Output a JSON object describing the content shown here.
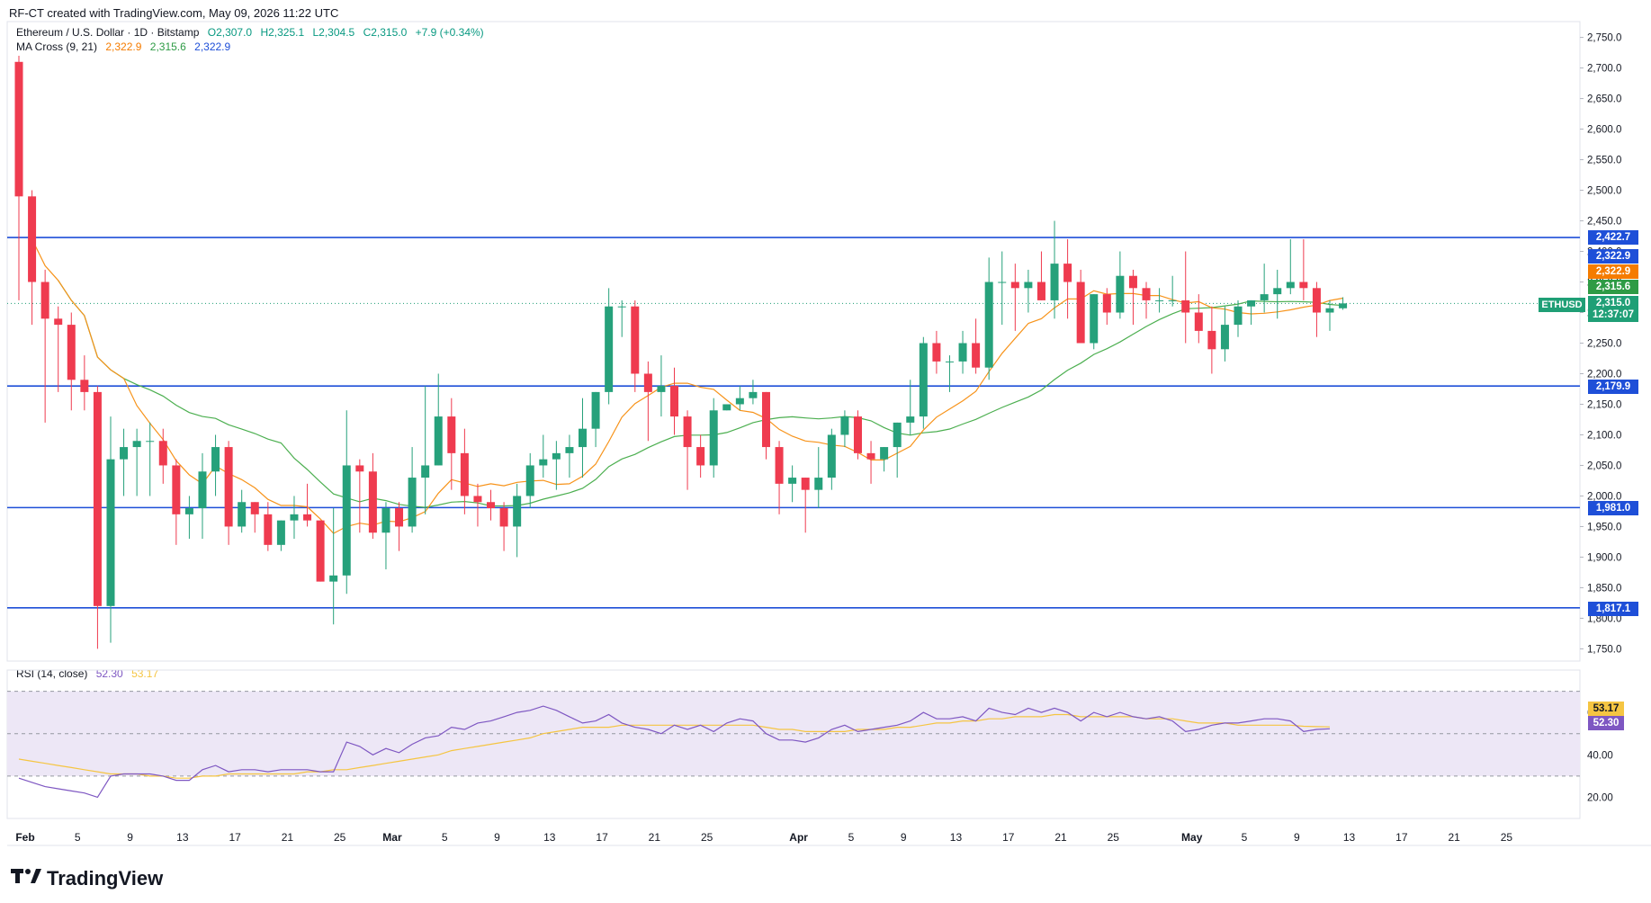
{
  "header": {
    "title": "RF-CT created with TradingView.com, May 09, 2026 11:22 UTC"
  },
  "legend": {
    "symbol": "Ethereum / U.S. Dollar · 1D · Bitstamp",
    "open": "O2,307.0",
    "high": "H2,325.1",
    "low": "L2,304.5",
    "close": "C2,315.0",
    "change": "+7.9 (+0.34%)",
    "ma_label": "MA Cross (9, 21)",
    "ma_val1": "2,322.9",
    "ma_val2": "2,315.6",
    "ma_val3": "2,322.9",
    "rsi_label": "RSI (14, close)",
    "rsi_val": "52.30",
    "rsi_ma_val": "53.17"
  },
  "colors": {
    "up": "#26a17b",
    "down": "#ef3b4f",
    "ma_fast": "#f7931a",
    "ma_slow": "#4caf50",
    "level": "#1e4fd8",
    "rsi": "#7e57c2",
    "rsi_ma": "#f5c542",
    "rsi_band": "#ede7f6"
  },
  "price_tags": [
    {
      "label": "2,422.7",
      "color": "#1e4fd8"
    },
    {
      "label": "2,322.9",
      "color": "#1e4fd8"
    },
    {
      "label": "2,322.9",
      "color": "#f57c00"
    },
    {
      "label": "2,315.6",
      "color": "#2e9b45"
    },
    {
      "label": "2,315.0",
      "color": "#1f9f76"
    },
    {
      "label": "12:37:07",
      "color": "#1f9f76"
    },
    {
      "label": "2,179.9",
      "color": "#1e4fd8"
    },
    {
      "label": "1,981.0",
      "color": "#1e4fd8"
    },
    {
      "label": "1,817.1",
      "color": "#1e4fd8"
    }
  ],
  "symbol_tag": "ETHUSD",
  "rsi_tags": [
    {
      "label": "53.17",
      "color": "#f5c542",
      "text": "#131722"
    },
    {
      "label": "52.30",
      "color": "#7e57c2",
      "text": "#ffffff"
    }
  ],
  "footer": {
    "brand": "TradingView"
  },
  "chart_data": {
    "type": "candlestick",
    "title": "Ethereum / U.S. Dollar · 1D · Bitstamp",
    "x_tick_labels": [
      "Feb",
      "5",
      "9",
      "13",
      "17",
      "21",
      "25",
      "Mar",
      "5",
      "9",
      "13",
      "17",
      "21",
      "25",
      "Apr",
      "5",
      "9",
      "13",
      "17",
      "21",
      "25",
      "May",
      "5",
      "9",
      "13",
      "17",
      "21",
      "25"
    ],
    "y_ticks": [
      1750,
      1800,
      1850,
      1900,
      1950,
      2000,
      2050,
      2100,
      2150,
      2200,
      2250,
      2300,
      2350,
      2400,
      2450,
      2500,
      2550,
      2600,
      2650,
      2700,
      2750
    ],
    "y_tick_labels": [
      "1,750.0",
      "1,800.0",
      "1,850.0",
      "1,900.0",
      "1,950.0",
      "2,000.0",
      "2,050.0",
      "2,100.0",
      "2,150.0",
      "2,200.0",
      "2,250.0",
      "2,300.0",
      "2,350.0",
      "2,400.0",
      "2,450.0",
      "2,500.0",
      "2,550.0",
      "2,600.0",
      "2,650.0",
      "2,700.0",
      "2,750.0"
    ],
    "ylim": [
      1730,
      2770
    ],
    "start_date": "2026-02-01",
    "x_range_days": [
      0,
      118
    ],
    "horizontal_levels": [
      2422.7,
      2179.9,
      1981.0,
      1817.1
    ],
    "last_price": 2315.0,
    "ohlc": [
      [
        2710,
        2720,
        2320,
        2490
      ],
      [
        2490,
        2500,
        2280,
        2350
      ],
      [
        2350,
        2370,
        2120,
        2290
      ],
      [
        2290,
        2310,
        2170,
        2280
      ],
      [
        2280,
        2300,
        2140,
        2190
      ],
      [
        2190,
        2230,
        2140,
        2170
      ],
      [
        2170,
        2180,
        1750,
        1820
      ],
      [
        1820,
        2130,
        1760,
        2060
      ],
      [
        2060,
        2110,
        2000,
        2080
      ],
      [
        2080,
        2110,
        2000,
        2090
      ],
      [
        2090,
        2120,
        2000,
        2090
      ],
      [
        2090,
        2110,
        2020,
        2050
      ],
      [
        2050,
        2060,
        1920,
        1970
      ],
      [
        1970,
        2000,
        1930,
        1980
      ],
      [
        1980,
        2070,
        1930,
        2040
      ],
      [
        2040,
        2100,
        2000,
        2080
      ],
      [
        2080,
        2090,
        1920,
        1950
      ],
      [
        1950,
        2010,
        1940,
        1990
      ],
      [
        1990,
        1990,
        1940,
        1970
      ],
      [
        1970,
        1990,
        1910,
        1920
      ],
      [
        1920,
        1960,
        1910,
        1960
      ],
      [
        1960,
        2000,
        1930,
        1970
      ],
      [
        1970,
        2020,
        1950,
        1960
      ],
      [
        1960,
        1960,
        1860,
        1860
      ],
      [
        1860,
        1980,
        1790,
        1870
      ],
      [
        1870,
        2140,
        1840,
        2050
      ],
      [
        2050,
        2060,
        1940,
        2040
      ],
      [
        2040,
        2070,
        1930,
        1940
      ],
      [
        1940,
        1990,
        1880,
        1980
      ],
      [
        1980,
        1990,
        1910,
        1950
      ],
      [
        1950,
        2080,
        1940,
        2030
      ],
      [
        2030,
        2180,
        1970,
        2050
      ],
      [
        2050,
        2200,
        2050,
        2130
      ],
      [
        2130,
        2160,
        2010,
        2070
      ],
      [
        2070,
        2110,
        1970,
        2000
      ],
      [
        2000,
        2020,
        1950,
        1990
      ],
      [
        1990,
        2010,
        1960,
        1980
      ],
      [
        1980,
        1990,
        1910,
        1950
      ],
      [
        1950,
        2020,
        1900,
        2000
      ],
      [
        2000,
        2070,
        1980,
        2050
      ],
      [
        2050,
        2100,
        2030,
        2060
      ],
      [
        2060,
        2090,
        2010,
        2070
      ],
      [
        2070,
        2100,
        2030,
        2080
      ],
      [
        2080,
        2160,
        2030,
        2110
      ],
      [
        2110,
        2170,
        2080,
        2170
      ],
      [
        2170,
        2340,
        2150,
        2310
      ],
      [
        2310,
        2320,
        2260,
        2310
      ],
      [
        2310,
        2320,
        2170,
        2200
      ],
      [
        2200,
        2220,
        2090,
        2170
      ],
      [
        2170,
        2230,
        2130,
        2180
      ],
      [
        2180,
        2210,
        2100,
        2130
      ],
      [
        2130,
        2140,
        2010,
        2080
      ],
      [
        2080,
        2100,
        2030,
        2050
      ],
      [
        2050,
        2160,
        2030,
        2140
      ],
      [
        2140,
        2150,
        2140,
        2150
      ],
      [
        2150,
        2180,
        2140,
        2160
      ],
      [
        2160,
        2190,
        2150,
        2170
      ],
      [
        2170,
        2170,
        2060,
        2080
      ],
      [
        2080,
        2090,
        1970,
        2020
      ],
      [
        2020,
        2050,
        1990,
        2030
      ],
      [
        2030,
        2030,
        1940,
        2010
      ],
      [
        2010,
        2080,
        1980,
        2030
      ],
      [
        2030,
        2110,
        2010,
        2100
      ],
      [
        2100,
        2140,
        2080,
        2130
      ],
      [
        2130,
        2140,
        2060,
        2070
      ],
      [
        2070,
        2090,
        2020,
        2060
      ],
      [
        2060,
        2080,
        2040,
        2080
      ],
      [
        2080,
        2120,
        2030,
        2120
      ],
      [
        2120,
        2190,
        2100,
        2130
      ],
      [
        2130,
        2260,
        2110,
        2250
      ],
      [
        2250,
        2270,
        2200,
        2220
      ],
      [
        2220,
        2230,
        2170,
        2220
      ],
      [
        2220,
        2270,
        2200,
        2250
      ],
      [
        2250,
        2290,
        2200,
        2210
      ],
      [
        2210,
        2390,
        2190,
        2350
      ],
      [
        2350,
        2400,
        2280,
        2350
      ],
      [
        2350,
        2380,
        2270,
        2340
      ],
      [
        2340,
        2370,
        2300,
        2350
      ],
      [
        2350,
        2400,
        2320,
        2320
      ],
      [
        2320,
        2450,
        2290,
        2380
      ],
      [
        2380,
        2420,
        2290,
        2350
      ],
      [
        2350,
        2370,
        2250,
        2250
      ],
      [
        2250,
        2330,
        2240,
        2330
      ],
      [
        2330,
        2340,
        2280,
        2300
      ],
      [
        2300,
        2400,
        2290,
        2360
      ],
      [
        2360,
        2370,
        2280,
        2340
      ],
      [
        2340,
        2350,
        2290,
        2320
      ],
      [
        2320,
        2340,
        2300,
        2320
      ],
      [
        2320,
        2360,
        2310,
        2320
      ],
      [
        2320,
        2400,
        2250,
        2300
      ],
      [
        2300,
        2330,
        2250,
        2270
      ],
      [
        2270,
        2310,
        2200,
        2240
      ],
      [
        2240,
        2310,
        2220,
        2280
      ],
      [
        2280,
        2320,
        2260,
        2310
      ],
      [
        2310,
        2320,
        2280,
        2320
      ],
      [
        2320,
        2380,
        2300,
        2330
      ],
      [
        2330,
        2370,
        2290,
        2340
      ],
      [
        2340,
        2420,
        2330,
        2350
      ],
      [
        2350,
        2420,
        2320,
        2340
      ],
      [
        2340,
        2350,
        2260,
        2300
      ],
      [
        2300,
        2320,
        2270,
        2307
      ],
      [
        2307,
        2325.1,
        2304.5,
        2315
      ]
    ],
    "rsi": {
      "name": "RSI (14, close)",
      "ylim": [
        10,
        80
      ],
      "y_ticks": [
        20,
        40,
        60
      ],
      "y_tick_labels": [
        "20.00",
        "40.00",
        "60.00"
      ],
      "upper": 70,
      "lower": 30,
      "values": [
        29,
        27,
        25,
        24,
        23,
        22,
        20,
        30,
        31,
        31,
        31,
        30,
        28,
        28,
        33,
        35,
        32,
        33,
        33,
        32,
        33,
        33,
        33,
        32,
        32,
        46,
        44,
        40,
        43,
        41,
        45,
        48,
        49,
        53,
        52,
        55,
        56,
        58,
        60,
        61,
        63,
        61,
        58,
        55,
        56,
        59,
        55,
        53,
        52,
        50,
        54,
        52,
        54,
        51,
        55,
        57,
        56,
        50,
        47,
        47,
        46,
        48,
        52,
        54,
        51,
        52,
        53,
        54,
        56,
        60,
        57,
        57,
        58,
        56,
        62,
        60,
        59,
        62,
        60,
        62,
        60,
        56,
        60,
        58,
        60,
        58,
        57,
        58,
        56,
        51,
        52,
        54,
        55,
        55,
        56,
        57,
        57,
        56,
        51,
        52,
        52.3
      ],
      "ma": [
        38,
        37,
        36,
        35,
        34,
        33,
        32,
        31,
        31,
        31,
        30,
        30,
        29,
        29,
        30,
        30,
        31,
        31,
        31,
        31,
        31,
        31,
        32,
        32,
        33,
        33,
        34,
        35,
        36,
        37,
        38,
        39,
        40,
        42,
        43,
        44,
        45,
        46,
        47,
        48,
        50,
        51,
        52,
        53,
        53,
        53,
        54,
        54,
        54,
        54,
        54,
        54,
        54,
        54,
        54,
        54,
        54,
        53,
        52,
        52,
        51,
        51,
        51,
        51,
        52,
        52,
        52,
        53,
        53,
        54,
        55,
        55,
        56,
        56,
        57,
        57,
        58,
        58,
        58,
        59,
        59,
        58,
        58,
        58,
        58,
        58,
        57,
        57,
        57,
        56,
        55,
        55,
        55,
        54,
        54,
        54,
        54,
        54,
        53.5,
        53.3,
        53.17
      ]
    }
  }
}
